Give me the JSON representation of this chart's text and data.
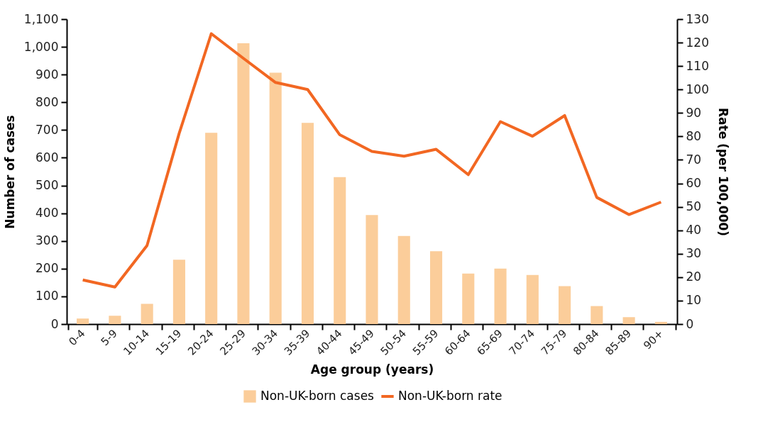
{
  "chart_data": {
    "type": "bar",
    "xlabel": "Age group (years)",
    "ylabel": "Number of cases",
    "y2label": "Rate (per 100,000)",
    "categories": [
      "0-4",
      "5-9",
      "10-14",
      "15-19",
      "20-24",
      "25-29",
      "30-34",
      "35-39",
      "40-44",
      "45-49",
      "50-54",
      "55-59",
      "60-64",
      "65-69",
      "70-74",
      "75-79",
      "80-84",
      "85-89",
      "90+"
    ],
    "series": [
      {
        "name": "Non-UK-born cases",
        "color": "#fbcd9a",
        "values": [
          20,
          30,
          73,
          232,
          690,
          1013,
          907,
          726,
          530,
          393,
          318,
          263,
          182,
          200,
          177,
          137,
          65,
          25,
          8
        ]
      },
      {
        "name": "Non-UK-born rate",
        "type": "line",
        "axis": "y2",
        "color": "#f26722",
        "values": [
          18.8,
          15.8,
          33.5,
          81.3,
          123.8,
          113.3,
          103,
          100,
          80.7,
          73.6,
          71.6,
          74.5,
          63.7,
          86.3,
          80.1,
          88.9,
          54,
          46.7,
          52
        ]
      }
    ],
    "ylim": [
      0,
      1100
    ],
    "yticks": [
      0,
      100,
      200,
      300,
      400,
      500,
      600,
      700,
      800,
      900,
      {
        "value": 1000,
        "label": "1,000"
      },
      {
        "value": 1100,
        "label": "1,100"
      }
    ],
    "y2lim": [
      0,
      130
    ],
    "y2ticks": [
      0,
      10,
      20,
      30,
      40,
      50,
      60,
      70,
      80,
      90,
      100,
      110,
      120,
      130
    ],
    "grid": false,
    "legend": "bottom",
    "marker": "none",
    "line_style": "solid"
  }
}
